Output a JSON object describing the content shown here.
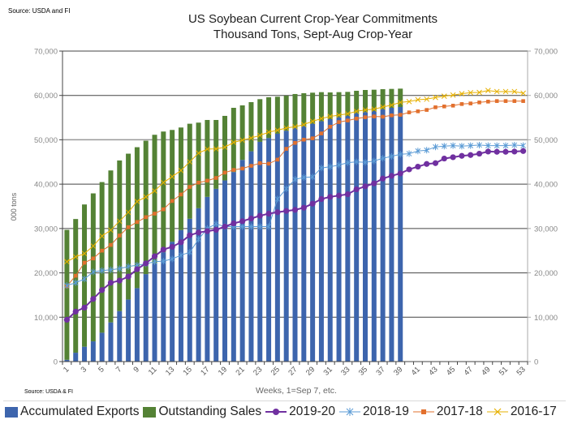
{
  "source_top": "Source: USDA and  FI",
  "source_bottom": "Source: USDA & FI",
  "chart_data": {
    "type": "bar+line",
    "title": [
      "US Soybean Current Crop-Year Commitments",
      "Thousand Tons, Sept-Aug Crop-Year"
    ],
    "xlabel": "Weeks, 1=Sep 7, etc.",
    "ylabel": "000 tons",
    "ylim": [
      0,
      70000
    ],
    "yticks": [
      "0",
      "10,000",
      "20,000",
      "30,000",
      "40,000",
      "50,000",
      "60,000",
      "70,000"
    ],
    "secondary_yticks": [
      "0",
      "10,000",
      "20,000",
      "30,000",
      "40,000",
      "50,000",
      "60,000",
      "70,000"
    ],
    "x": [
      1,
      2,
      3,
      4,
      5,
      6,
      7,
      8,
      9,
      10,
      11,
      12,
      13,
      14,
      15,
      16,
      17,
      18,
      19,
      20,
      21,
      22,
      23,
      24,
      25,
      26,
      27,
      28,
      29,
      30,
      31,
      32,
      33,
      34,
      35,
      36,
      37,
      38,
      39,
      40,
      41,
      42,
      43,
      44,
      45,
      46,
      47,
      48,
      49,
      50,
      51,
      52,
      53
    ],
    "xtick_labels": [
      "1",
      "3",
      "5",
      "7",
      "9",
      "11",
      "13",
      "15",
      "17",
      "19",
      "21",
      "23",
      "25",
      "27",
      "29",
      "31",
      "33",
      "35",
      "37",
      "39",
      "41",
      "43",
      "45",
      "47",
      "49",
      "51",
      "53"
    ],
    "grid": true,
    "legend_position": "bottom",
    "stacked_bars": [
      {
        "name": "Accumulated Exports",
        "color": "#3d65ad",
        "values": [
          400,
          2000,
          3350,
          4560,
          6510,
          8830,
          11380,
          14000,
          16560,
          19720,
          22150,
          24650,
          27020,
          29640,
          32200,
          34570,
          37130,
          38950,
          40840,
          42730,
          45470,
          47410,
          49540,
          50400,
          51370,
          52040,
          52650,
          53070,
          53620,
          54170,
          54660,
          55080,
          55390,
          56000,
          56240,
          56480,
          56910,
          57210,
          57390
        ]
      },
      {
        "name": "Outstanding Sales",
        "color": "#548235",
        "values": [
          29300,
          30140,
          32070,
          33360,
          33960,
          34260,
          33960,
          32870,
          31770,
          30070,
          28980,
          27210,
          25200,
          23130,
          21420,
          19300,
          17340,
          15520,
          14550,
          14480,
          12290,
          11080,
          9620,
          9190,
          8340,
          7910,
          7670,
          7430,
          7000,
          6570,
          6020,
          5660,
          5410,
          5050,
          4990,
          4810,
          4500,
          4260,
          4140
        ]
      }
    ],
    "series": [
      {
        "name": "2019-20",
        "color": "#7030a0",
        "marker": "circle",
        "values": [
          9430,
          11260,
          12170,
          14120,
          16130,
          17770,
          18260,
          19170,
          20820,
          22150,
          23740,
          25260,
          25870,
          26900,
          28480,
          29090,
          29400,
          29700,
          30430,
          31160,
          31650,
          32260,
          32870,
          33350,
          33660,
          33960,
          34200,
          34690,
          35600,
          36640,
          37130,
          37430,
          37730,
          38830,
          39500,
          40170,
          41270,
          41870,
          42420,
          43330,
          43940,
          44550,
          44730,
          45770,
          46070,
          46380,
          46560,
          46870,
          47350,
          47290,
          47290,
          47350,
          47470
        ]
      },
      {
        "name": "2018-19",
        "color": "#5b9bd5",
        "marker": "star",
        "values": [
          17160,
          17770,
          18620,
          20210,
          20510,
          20690,
          20940,
          21420,
          21730,
          22030,
          22520,
          22640,
          23130,
          23980,
          24650,
          27570,
          30010,
          31040,
          30430,
          30430,
          30430,
          30430,
          30430,
          30430,
          36640,
          38950,
          41080,
          41510,
          41630,
          43640,
          43940,
          44310,
          44850,
          45040,
          44920,
          45220,
          45830,
          46260,
          46740,
          46870,
          47470,
          47650,
          48390,
          48570,
          48690,
          48570,
          48690,
          48810,
          48690,
          48690,
          48690,
          48810,
          48690
        ]
      },
      {
        "name": "2017-18",
        "color": "#e2702e",
        "marker": "square",
        "values": [
          16980,
          19350,
          22280,
          23250,
          25010,
          26290,
          28420,
          30300,
          31470,
          32560,
          33350,
          34330,
          36210,
          37670,
          39380,
          40350,
          40780,
          41390,
          42600,
          43210,
          43520,
          44130,
          44730,
          44610,
          45530,
          47960,
          49300,
          50030,
          50330,
          51430,
          52950,
          53990,
          54350,
          54780,
          55080,
          55260,
          55200,
          55510,
          55630,
          56180,
          56420,
          56730,
          57330,
          57520,
          57700,
          58060,
          58190,
          58430,
          58610,
          58730,
          58730,
          58730,
          58730
        ]
      },
      {
        "name": "2016-17",
        "color": "#e6b000",
        "marker": "x",
        "values": [
          22520,
          23610,
          24350,
          26050,
          28300,
          29640,
          31650,
          33660,
          36090,
          37130,
          38470,
          40350,
          41690,
          43090,
          45040,
          46990,
          47900,
          47960,
          48330,
          49420,
          49910,
          50400,
          51000,
          51730,
          52160,
          52650,
          52950,
          53440,
          54170,
          54780,
          55260,
          55570,
          55870,
          56420,
          56730,
          56910,
          57390,
          57820,
          58430,
          58610,
          59040,
          59160,
          59530,
          59830,
          60080,
          60380,
          60620,
          60680,
          61110,
          60870,
          60870,
          60870,
          60500
        ]
      }
    ]
  }
}
